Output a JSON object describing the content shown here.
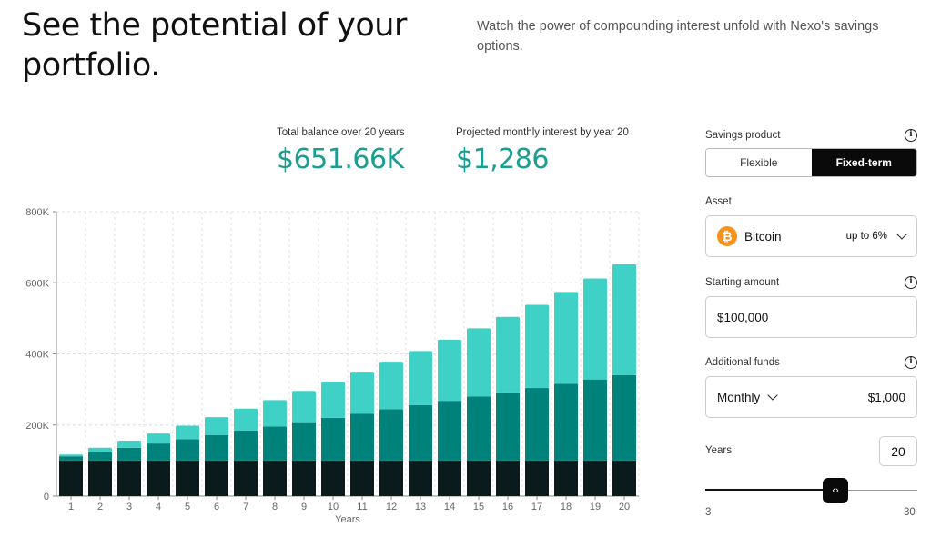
{
  "header": {
    "title": "See the potential of your portfolio.",
    "subtitle": "Watch the power of compounding interest unfold with Nexo's savings options."
  },
  "stats": {
    "total_label": "Total balance over 20 years",
    "total_value": "$651.66K",
    "monthly_label": "Projected monthly interest by year 20",
    "monthly_value": "$1,286"
  },
  "panel": {
    "savings_product_label": "Savings product",
    "options": [
      "Flexible",
      "Fixed-term"
    ],
    "selected_option": "Fixed-term",
    "asset_label": "Asset",
    "asset_name": "Bitcoin",
    "asset_icon": "bitcoin-icon",
    "asset_rate": "up to 6%",
    "starting_amount_label": "Starting amount",
    "starting_amount_value": "$100,000",
    "additional_funds_label": "Additional funds",
    "frequency": "Monthly",
    "additional_amount": "$1,000",
    "years_label": "Years",
    "years_value": "20",
    "slider_min": "3",
    "slider_max": "30",
    "slider_value": 20,
    "info_icon": "info-icon"
  },
  "colors": {
    "accent": "#1a9e92",
    "bar_base": "#0b1a1a",
    "bar_mid": "#00827a",
    "bar_top": "#3fd1c5"
  },
  "chart_data": {
    "type": "bar",
    "stacked": true,
    "xlabel": "Years",
    "ylabel": "",
    "categories": [
      "1",
      "2",
      "3",
      "4",
      "5",
      "6",
      "7",
      "8",
      "9",
      "10",
      "11",
      "12",
      "13",
      "14",
      "15",
      "16",
      "17",
      "18",
      "19",
      "20"
    ],
    "ylim": [
      0,
      800000
    ],
    "yticks": [
      0,
      200000,
      400000,
      600000,
      800000
    ],
    "ytick_labels": [
      "0",
      "200K",
      "400K",
      "600K",
      "800K"
    ],
    "series": [
      {
        "values": [
          100000,
          100000,
          100000,
          100000,
          100000,
          100000,
          100000,
          100000,
          100000,
          100000,
          100000,
          100000,
          100000,
          100000,
          100000,
          100000,
          100000,
          100000,
          100000,
          100000
        ]
      },
      {
        "values": [
          12000,
          24000,
          36000,
          48000,
          60000,
          72000,
          84000,
          96000,
          108000,
          120000,
          132000,
          144000,
          156000,
          168000,
          180000,
          192000,
          204000,
          216000,
          228000,
          240000
        ]
      },
      {
        "values": [
          5000,
          12000,
          20000,
          28000,
          38000,
          50000,
          62000,
          74000,
          88000,
          102000,
          118000,
          134000,
          152000,
          172000,
          192000,
          212000,
          234000,
          258000,
          284000,
          312000
        ]
      }
    ],
    "grid": true
  }
}
